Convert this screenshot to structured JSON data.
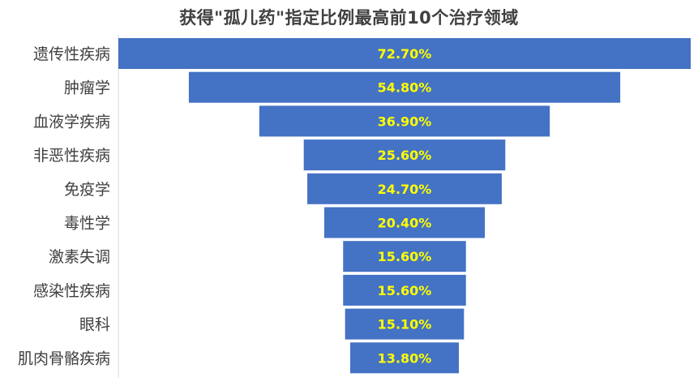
{
  "chart_data": {
    "type": "bar",
    "orientation": "horizontal-funnel",
    "title": "获得\"孤儿药\"指定比例最高前10个治疗领域",
    "categories": [
      "遗传性疾病",
      "肿瘤学",
      "血液学疾病",
      "非恶性疾病",
      "免疫学",
      "毒性学",
      "激素失调",
      "感染性疾病",
      "眼科",
      "肌肉骨骼疾病"
    ],
    "values": [
      72.7,
      54.8,
      36.9,
      25.6,
      24.7,
      20.4,
      15.6,
      15.6,
      15.1,
      13.8
    ],
    "data_labels": [
      "72.70%",
      "54.80%",
      "36.90%",
      "25.60%",
      "24.70%",
      "20.40%",
      "15.60%",
      "15.60%",
      "15.10%",
      "13.80%"
    ],
    "unit": "%",
    "bar_color": "#4472C4",
    "label_color": "#FFFF00",
    "legend": "none",
    "grid": false
  }
}
